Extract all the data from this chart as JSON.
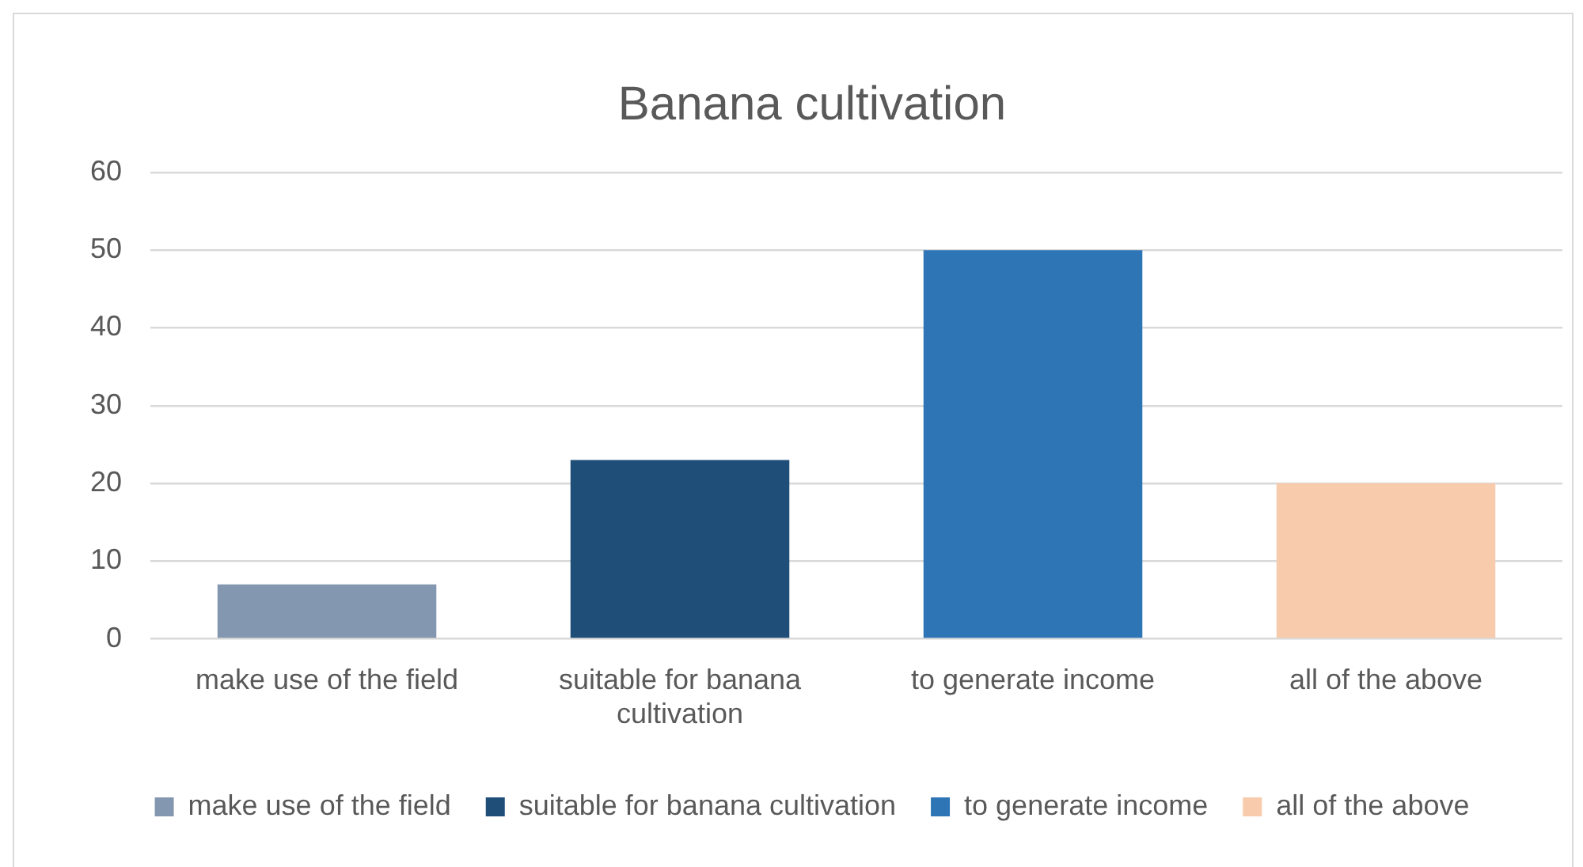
{
  "chart_data": {
    "type": "bar",
    "title": "Banana cultivation",
    "categories": [
      "make use of the field",
      "suitable for banana cultivation",
      "to generate income",
      "all of the above"
    ],
    "series": [
      {
        "name": "make use of the field",
        "color": "#8497b0",
        "values": [
          7,
          null,
          null,
          null
        ]
      },
      {
        "name": "suitable for banana cultivation",
        "color": "#1f4e79",
        "values": [
          null,
          23,
          null,
          null
        ]
      },
      {
        "name": "to generate income",
        "color": "#2e75b6",
        "values": [
          null,
          null,
          50,
          null
        ]
      },
      {
        "name": "all of the above",
        "color": "#f8cbad",
        "values": [
          null,
          null,
          null,
          20
        ]
      }
    ],
    "ylim": [
      0,
      60
    ],
    "yticks": [
      0,
      10,
      20,
      30,
      40,
      50,
      60
    ],
    "grid": "y",
    "legend": "bottom"
  }
}
